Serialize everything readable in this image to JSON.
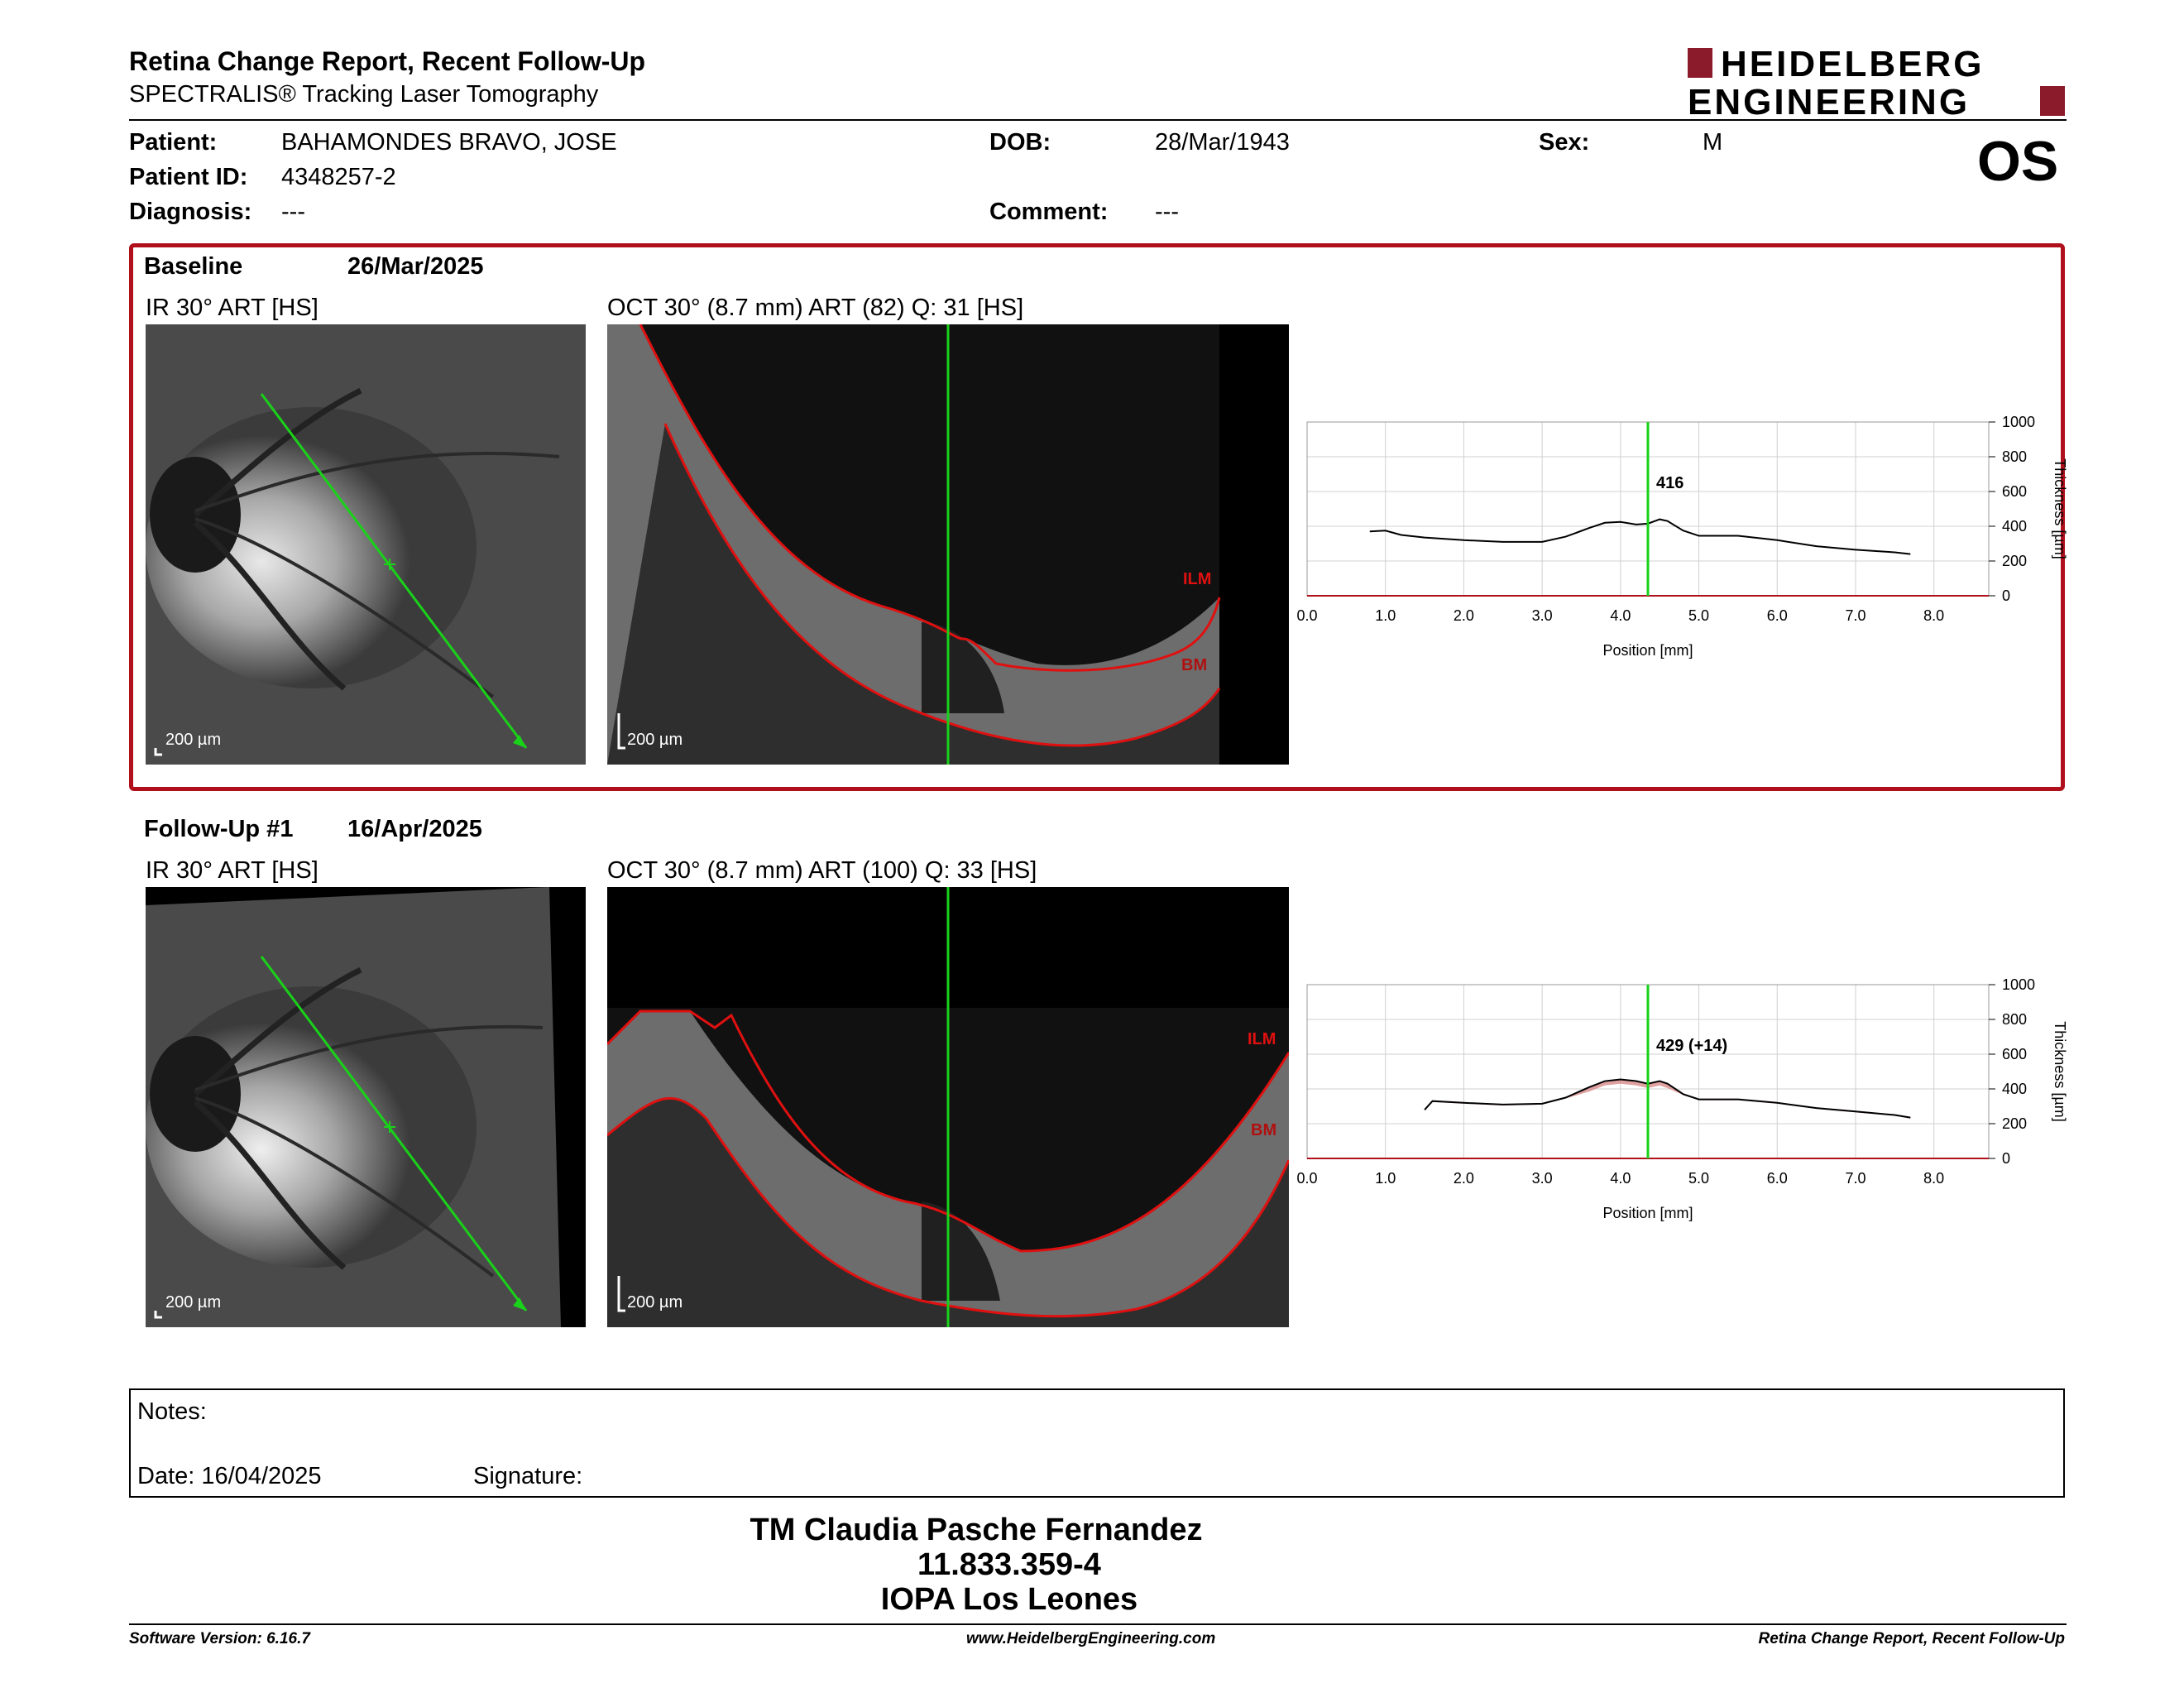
{
  "report": {
    "title": "Retina Change Report, Recent Follow-Up",
    "subtitle": "SPECTRALIS® Tracking Laser Tomography",
    "eye": "OS",
    "logo_line1": "HEIDELBERG",
    "logo_line2": "ENGINEERING",
    "brand_color": "#8b1a2b"
  },
  "patient": {
    "patient_label": "Patient:",
    "patient_name": "BAHAMONDES BRAVO, JOSE",
    "id_label": "Patient ID:",
    "id": "4348257-2",
    "diagnosis_label": "Diagnosis:",
    "diagnosis": "---",
    "dob_label": "DOB:",
    "dob": "28/Mar/1943",
    "comment_label": "Comment:",
    "comment": "---",
    "sex_label": "Sex:",
    "sex": "M"
  },
  "baseline": {
    "label": "Baseline",
    "date": "26/Mar/2025",
    "ir_caption": "IR 30° ART [HS]",
    "oct_caption": "OCT 30° (8.7 mm) ART (82) Q: 31 [HS]",
    "scale_ir": "200 µm",
    "scale_oct": "200 µm",
    "ilm_label": "ILM",
    "bm_label": "BM"
  },
  "followup": {
    "label": "Follow-Up #1",
    "date": "16/Apr/2025",
    "ir_caption": "IR 30° ART [HS]",
    "oct_caption": "OCT 30° (8.7 mm) ART (100) Q: 33 [HS]",
    "scale_ir": "200 µm",
    "scale_oct": "200 µm",
    "ilm_label": "ILM",
    "bm_label": "BM"
  },
  "chart_data": [
    {
      "type": "line",
      "xlabel": "Position [mm]",
      "ylabel": "Thickness [µm]",
      "xlim": [
        0,
        8.7
      ],
      "ylim": [
        0,
        1000
      ],
      "xticks": [
        "0.0",
        "1.0",
        "2.0",
        "3.0",
        "4.0",
        "5.0",
        "6.0",
        "7.0",
        "8.0"
      ],
      "yticks": [
        "0",
        "200",
        "400",
        "600",
        "800",
        "1000"
      ],
      "grid": true,
      "marker_x": 4.35,
      "marker_label": "416",
      "series": [
        {
          "x": [
            0.8,
            1.0,
            1.2,
            1.5,
            2.0,
            2.5,
            3.0,
            3.3,
            3.6,
            3.8,
            4.0,
            4.2,
            4.35,
            4.5,
            4.6,
            4.8,
            5.0,
            5.5,
            6.0,
            6.5,
            7.0,
            7.5,
            7.7
          ],
          "y": [
            370,
            375,
            350,
            335,
            320,
            310,
            310,
            340,
            390,
            420,
            425,
            410,
            415,
            440,
            430,
            375,
            345,
            345,
            320,
            285,
            265,
            250,
            240
          ]
        }
      ]
    },
    {
      "type": "line",
      "xlabel": "Position [mm]",
      "ylabel": "Thickness [µm]",
      "xlim": [
        0,
        8.7
      ],
      "ylim": [
        0,
        1000
      ],
      "xticks": [
        "0.0",
        "1.0",
        "2.0",
        "3.0",
        "4.0",
        "5.0",
        "6.0",
        "7.0",
        "8.0"
      ],
      "yticks": [
        "0",
        "200",
        "400",
        "600",
        "800",
        "1000"
      ],
      "grid": true,
      "marker_x": 4.35,
      "marker_label": "429 (+14)",
      "series": [
        {
          "x": [
            1.5,
            1.6,
            2.0,
            2.5,
            3.0,
            3.3,
            3.6,
            3.8,
            4.0,
            4.2,
            4.35,
            4.5,
            4.6,
            4.8,
            5.0,
            5.5,
            6.0,
            6.5,
            7.0,
            7.5,
            7.7
          ],
          "y": [
            280,
            330,
            320,
            310,
            315,
            350,
            410,
            445,
            455,
            445,
            430,
            445,
            430,
            370,
            340,
            340,
            320,
            290,
            270,
            250,
            235
          ]
        }
      ]
    }
  ],
  "notes": {
    "label": "Notes:",
    "date_label": "Date: 16/04/2025",
    "signature_label": "Signature:"
  },
  "signer": {
    "name": "TM Claudia Pasche Fernandez",
    "id": "11.833.359-4",
    "org": "IOPA Los Leones"
  },
  "footer": {
    "software": "Software Version: 6.16.7",
    "website": "www.HeidelbergEngineering.com",
    "report_name": "Retina Change Report, Recent Follow-Up"
  }
}
